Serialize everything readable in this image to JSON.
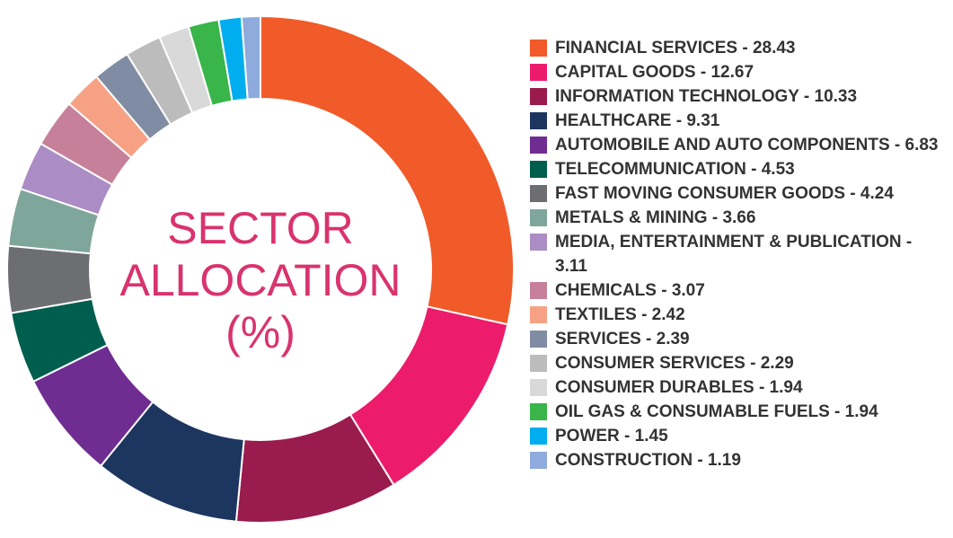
{
  "chart_data": {
    "type": "pie",
    "title_lines": [
      "SECTOR",
      "ALLOCATION",
      "(%)"
    ],
    "slices": [
      {
        "label": "FINANCIAL SERVICES - 28.43",
        "value": 28.43,
        "color": "#f15a29"
      },
      {
        "label": "CAPITAL GOODS - 12.67",
        "value": 12.67,
        "color": "#ed1b6b"
      },
      {
        "label": "INFORMATION TECHNOLOGY - 10.33",
        "value": 10.33,
        "color": "#9a1b4e"
      },
      {
        "label": "HEALTHCARE - 9.31",
        "value": 9.31,
        "color": "#1d3660"
      },
      {
        "label": "AUTOMOBILE AND AUTO COMPONENTS - 6.83",
        "value": 6.83,
        "color": "#6f2c91"
      },
      {
        "label": "TELECOMMUNICATION - 4.53",
        "value": 4.53,
        "color": "#005e4e"
      },
      {
        "label": "FAST MOVING CONSUMER GOODS - 4.24",
        "value": 4.24,
        "color": "#6d6e71"
      },
      {
        "label": "METALS & MINING - 3.66",
        "value": 3.66,
        "color": "#7fa69a"
      },
      {
        "label": "MEDIA, ENTERTAINMENT & PUBLICATION - 3.11",
        "value": 3.11,
        "color": "#ab8cc4"
      },
      {
        "label": "CHEMICALS - 3.07",
        "value": 3.07,
        "color": "#c7809a"
      },
      {
        "label": "TEXTILES - 2.42",
        "value": 2.42,
        "color": "#f7a184"
      },
      {
        "label": "SERVICES - 2.39",
        "value": 2.39,
        "color": "#808ca3"
      },
      {
        "label": "CONSUMER SERVICES - 2.29",
        "value": 2.29,
        "color": "#bcbcbc"
      },
      {
        "label": "CONSUMER DURABLES  - 1.94",
        "value": 1.94,
        "color": "#d9d9d9"
      },
      {
        "label": "OIL GAS & CONSUMABLE FUELS  - 1.94",
        "value": 1.94,
        "color": "#39b54a"
      },
      {
        "label": "POWER  - 1.45",
        "value": 1.45,
        "color": "#00aeef"
      },
      {
        "label": "CONSTRUCTION  - 1.19",
        "value": 1.19,
        "color": "#8faadc"
      }
    ],
    "legend_position": "right"
  }
}
